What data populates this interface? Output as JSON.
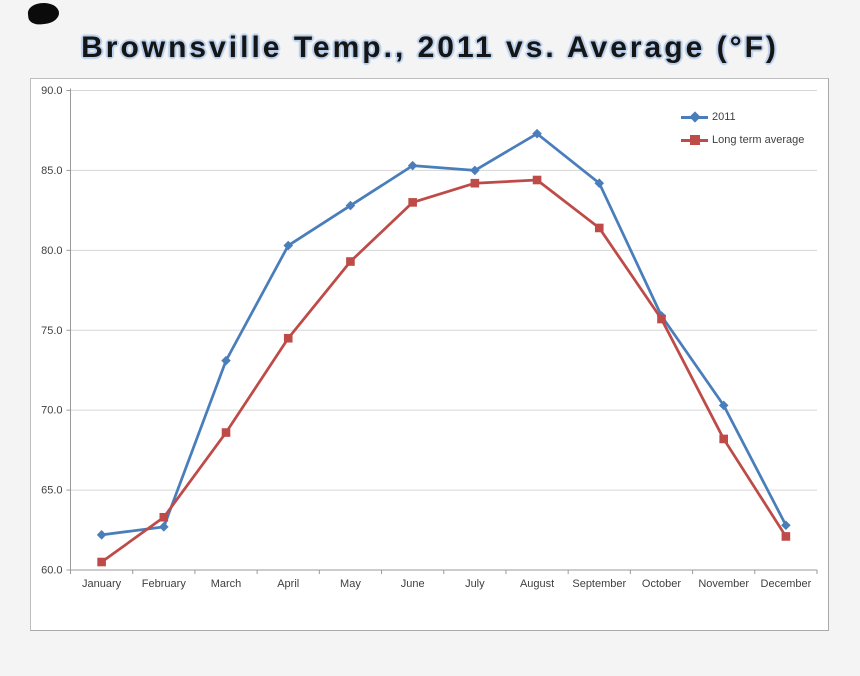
{
  "title": "Brownsville Temp., 2011 vs. Average (°F)",
  "title_color": "#151515",
  "title_glow_color": "#b9cfea",
  "background_color": "#f4f4f5",
  "chart_background_color": "#ffffff",
  "chart_data": {
    "type": "line",
    "title": "Brownsville Temp., 2011 vs. Average (°F)",
    "xlabel": "",
    "ylabel": "",
    "categories": [
      "January",
      "February",
      "March",
      "April",
      "May",
      "June",
      "July",
      "August",
      "September",
      "October",
      "November",
      "December"
    ],
    "series": [
      {
        "name": "2011",
        "color": "#4A7EBB",
        "marker": "diamond",
        "values": [
          62.2,
          62.7,
          73.1,
          80.3,
          82.8,
          85.3,
          85.0,
          87.3,
          84.2,
          75.9,
          70.3,
          62.8
        ]
      },
      {
        "name": "Long term average",
        "color": "#BE4B48",
        "marker": "square",
        "values": [
          60.5,
          63.3,
          68.6,
          74.5,
          79.3,
          83.0,
          84.2,
          84.4,
          81.4,
          75.7,
          68.2,
          62.1
        ]
      }
    ],
    "ylim": [
      60.0,
      90.0
    ],
    "ytick_step": 5,
    "ytick_labels": [
      "60.0",
      "65.0",
      "70.0",
      "75.0",
      "80.0",
      "85.0",
      "90.0"
    ],
    "grid": true,
    "grid_color": "#d6d6d6",
    "axis_color": "#9a9a9a",
    "label_color": "#3f3f3f",
    "legend_position": "top-right"
  }
}
